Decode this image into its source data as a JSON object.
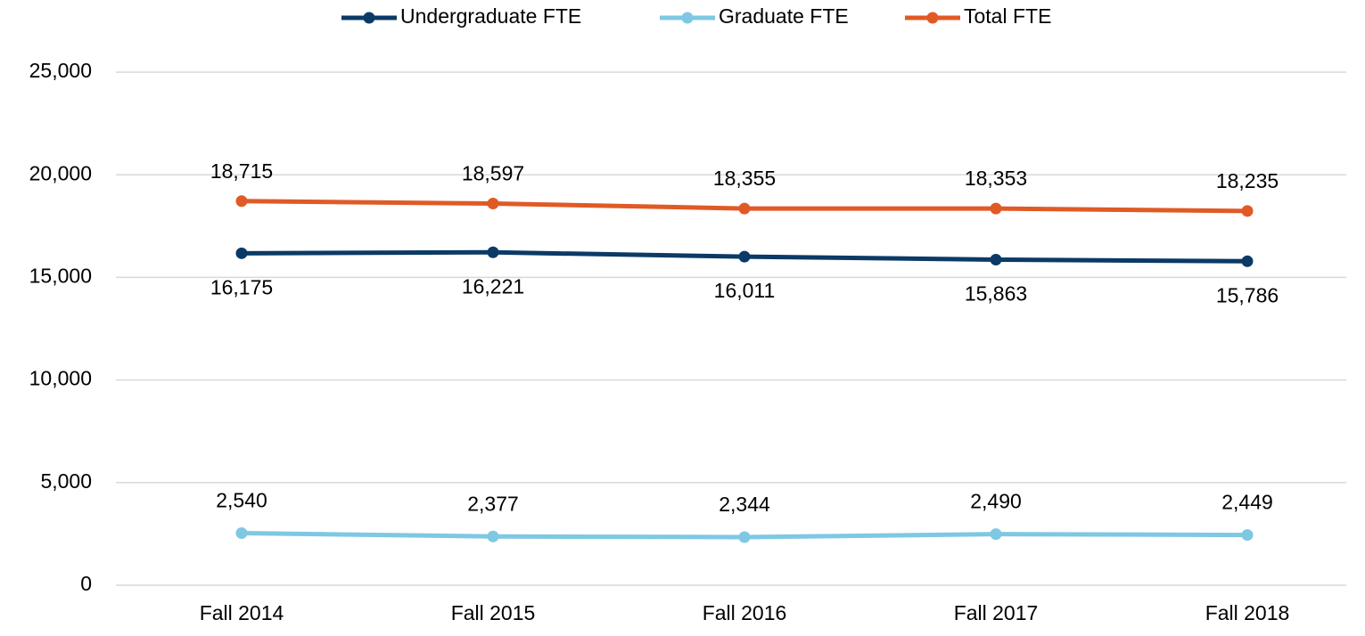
{
  "chart_data": {
    "type": "line",
    "categories": [
      "Fall 2014",
      "Fall 2015",
      "Fall 2016",
      "Fall 2017",
      "Fall 2018"
    ],
    "series": [
      {
        "name": "Undergraduate FTE",
        "color": "#0b3a66",
        "values": [
          16175,
          16221,
          16011,
          15863,
          15786
        ],
        "value_labels": [
          "16,175",
          "16,221",
          "16,011",
          "15,863",
          "15,786"
        ]
      },
      {
        "name": "Graduate FTE",
        "color": "#7ec8e3",
        "values": [
          2540,
          2377,
          2344,
          2490,
          2449
        ],
        "value_labels": [
          "2,540",
          "2,377",
          "2,344",
          "2,490",
          "2,449"
        ]
      },
      {
        "name": "Total FTE",
        "color": "#e05a26",
        "values": [
          18715,
          18597,
          18355,
          18353,
          18235
        ],
        "value_labels": [
          "18,715",
          "18,597",
          "18,355",
          "18,353",
          "18,235"
        ]
      }
    ],
    "ylim": [
      0,
      25000
    ],
    "yticks": [
      0,
      {
        "value": 5000,
        "label": "5,000"
      },
      {
        "value": 10000,
        "label": "10,000"
      },
      {
        "value": 15000,
        "label": "15,000"
      },
      {
        "value": 20000,
        "label": "20,000"
      },
      {
        "value": 25000,
        "label": "25,000"
      }
    ],
    "grid": true,
    "legend": "top"
  }
}
